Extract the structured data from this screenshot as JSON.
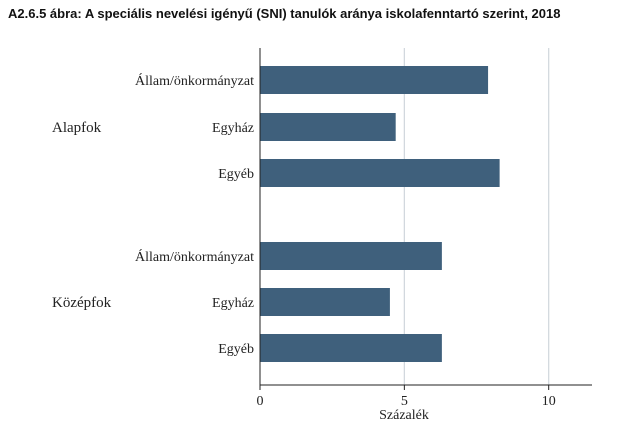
{
  "chart_data": {
    "type": "bar",
    "orientation": "horizontal",
    "title": "A2.6.5 ábra: A speciális nevelési igényű (SNI) tanulók aránya iskolafenntartó szerint, 2018",
    "xlabel": "Százalék",
    "ylabel": "",
    "xlim": [
      0,
      11.5
    ],
    "xticks": [
      0,
      5,
      10
    ],
    "grid": "vertical",
    "legend": "none",
    "bar_color": "#3f607c",
    "groups": [
      {
        "label": "Alapfok",
        "bars": [
          {
            "label": "Állam/önkormányzat",
            "value": 7.9
          },
          {
            "label": "Egyház",
            "value": 4.7
          },
          {
            "label": "Egyéb",
            "value": 8.3
          }
        ]
      },
      {
        "label": "Középfok",
        "bars": [
          {
            "label": "Állam/önkormányzat",
            "value": 6.3
          },
          {
            "label": "Egyház",
            "value": 4.5
          },
          {
            "label": "Egyéb",
            "value": 6.3
          }
        ]
      }
    ]
  }
}
